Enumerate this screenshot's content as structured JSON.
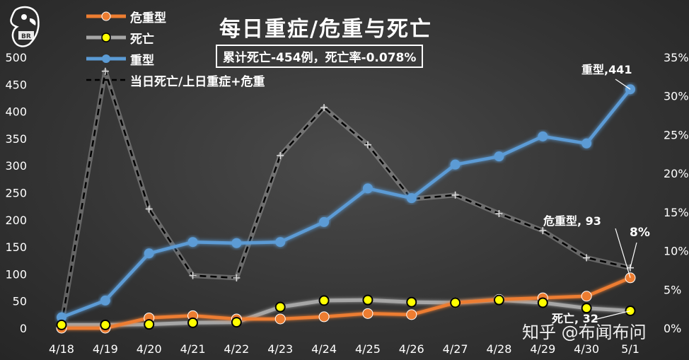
{
  "title": "每日重症/危重与死亡",
  "subtitle": "累计死亡-454例，死亡率-0.078%",
  "watermark": "知乎 @布闻布问",
  "legend": [
    {
      "label": "危重型",
      "color": "#ed7d31",
      "style": "line-marker"
    },
    {
      "label": "死亡",
      "color": "#a6a6a6",
      "marker": "#ffff00",
      "style": "line-marker"
    },
    {
      "label": "重型",
      "color": "#5b9bd5",
      "style": "line-marker"
    },
    {
      "label": "当日死亡/上日重症+危重",
      "color": "#000000",
      "style": "dashed"
    }
  ],
  "chart_data": {
    "type": "line",
    "title": "每日重症/危重与死亡",
    "subtitle": "累计死亡-454例，死亡率-0.078%",
    "categories": [
      "4/18",
      "4/19",
      "4/20",
      "4/21",
      "4/22",
      "4/23",
      "4/24",
      "4/25",
      "4/26",
      "4/27",
      "4/28",
      "4/29",
      "4/30",
      "5/1"
    ],
    "y_left": {
      "min": 0,
      "max": 500,
      "ticks": [
        0,
        50,
        100,
        150,
        200,
        250,
        300,
        350,
        400,
        450,
        500
      ]
    },
    "y_right": {
      "min": 0,
      "max": 35,
      "ticks": [
        "0%",
        "5%",
        "10%",
        "15%",
        "20%",
        "25%",
        "30%",
        "35%"
      ]
    },
    "grid": false,
    "legend_position": "top-left",
    "series": [
      {
        "name": "危重型",
        "axis": "left",
        "color": "#ed7d31",
        "values": [
          0,
          0,
          19,
          23,
          17,
          17,
          21,
          27,
          25,
          47,
          53,
          56,
          59,
          93
        ]
      },
      {
        "name": "死亡",
        "axis": "left",
        "color": "#a6a6a6",
        "values": [
          6,
          6,
          7,
          10,
          11,
          39,
          51,
          52,
          48,
          47,
          52,
          47,
          37,
          32
        ]
      },
      {
        "name": "重型",
        "axis": "left",
        "color": "#5b9bd5",
        "values": [
          20,
          51,
          138,
          159,
          157,
          159,
          196,
          258,
          240,
          302,
          317,
          354,
          341,
          441
        ]
      },
      {
        "name": "当日死亡/上日重症+危重",
        "axis": "right",
        "color": "#000000",
        "unit": "%",
        "values": [
          0.5,
          33.2,
          15.4,
          6.8,
          6.5,
          22.3,
          28.5,
          23.7,
          16.7,
          17.2,
          14.8,
          12.6,
          9.1,
          7.8
        ]
      }
    ],
    "annotations": [
      {
        "text": "重型,441",
        "series": "重型",
        "index": 13
      },
      {
        "text": "危重型, 93",
        "series": "危重型",
        "index": 13
      },
      {
        "text": "死亡, 32",
        "series": "死亡",
        "index": 13
      },
      {
        "text": "8%",
        "series": "当日死亡/上日重症+危重",
        "index": 13
      }
    ]
  }
}
